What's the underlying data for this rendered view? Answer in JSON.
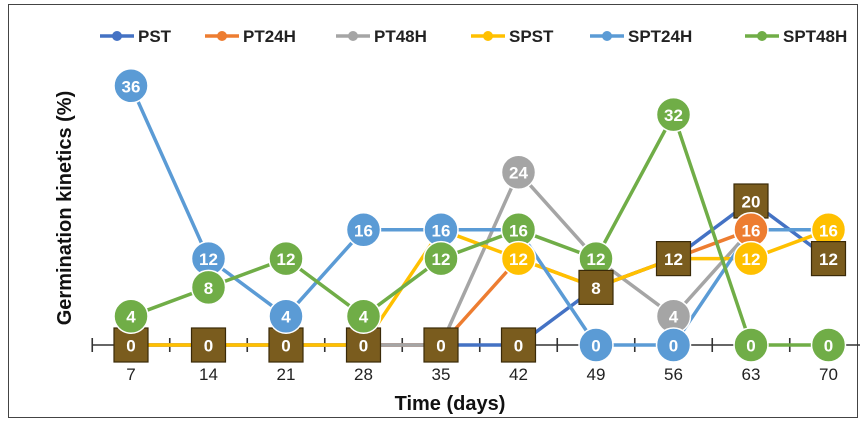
{
  "chart_data": {
    "type": "line",
    "xlabel": "Time (days)",
    "ylabel": "Germination kinetics (%)",
    "x": [
      7,
      14,
      21,
      28,
      35,
      42,
      49,
      56,
      63,
      70
    ],
    "ylim": [
      0,
      40
    ],
    "grid": false,
    "legend_position": "top",
    "series": [
      {
        "name": "PST",
        "color": "#4472c4",
        "values": [
          0,
          0,
          0,
          0,
          0,
          0,
          8,
          12,
          20,
          12
        ],
        "marker": "square",
        "marker_color": "#7a5c1e",
        "label_text_color": "#ffffff"
      },
      {
        "name": "PT24H",
        "color": "#ed7d31",
        "values": [
          0,
          0,
          0,
          0,
          0,
          12,
          8,
          12,
          16,
          16
        ],
        "marker": "circle",
        "marker_color": "#ed7d31",
        "label_text_color": "#ffffff"
      },
      {
        "name": "PT48H",
        "color": "#a5a5a5",
        "values": [
          0,
          0,
          0,
          0,
          0,
          24,
          12,
          4,
          16,
          16
        ],
        "marker": "circle",
        "marker_color": "#a5a5a5",
        "label_text_color": "#ffffff"
      },
      {
        "name": "SPST",
        "color": "#ffc000",
        "values": [
          0,
          0,
          0,
          0,
          16,
          12,
          8,
          12,
          12,
          16
        ],
        "marker": "circle",
        "marker_color": "#ffc000",
        "label_text_color": "#ffffff"
      },
      {
        "name": "SPT24H",
        "color": "#5b9bd5",
        "values": [
          36,
          12,
          4,
          16,
          16,
          16,
          0,
          0,
          16,
          16
        ],
        "marker": "circle",
        "marker_color": "#5b9bd5",
        "label_text_color": "#ffffff"
      },
      {
        "name": "SPT48H",
        "color": "#70ad47",
        "values": [
          4,
          8,
          12,
          4,
          12,
          16,
          12,
          32,
          0,
          0
        ],
        "marker": "circle",
        "marker_color": "#70ad47",
        "label_text_color": "#ffffff"
      }
    ],
    "data_labels": [
      {
        "series": "PST",
        "x": 7,
        "value": 0
      },
      {
        "series": "PST",
        "x": 14,
        "value": 0
      },
      {
        "series": "PST",
        "x": 21,
        "value": 0
      },
      {
        "series": "PST",
        "x": 28,
        "value": 0
      },
      {
        "series": "PST",
        "x": 35,
        "value": 0
      },
      {
        "series": "PST",
        "x": 42,
        "value": 0
      },
      {
        "series": "SPT24H",
        "x": 7,
        "value": 36
      },
      {
        "series": "SPT48H",
        "x": 7,
        "value": 4
      },
      {
        "series": "SPT24H",
        "x": 14,
        "value": 12
      },
      {
        "series": "SPT48H",
        "x": 14,
        "value": 8
      },
      {
        "series": "SPT48H",
        "x": 21,
        "value": 12
      },
      {
        "series": "SPT24H",
        "x": 21,
        "value": 4
      },
      {
        "series": "SPT24H",
        "x": 28,
        "value": 16
      },
      {
        "series": "SPT48H",
        "x": 28,
        "value": 4
      },
      {
        "series": "SPT24H",
        "x": 35,
        "value": 16
      },
      {
        "series": "SPT48H",
        "x": 35,
        "value": 12
      },
      {
        "series": "PT48H",
        "x": 42,
        "value": 24
      },
      {
        "series": "SPT48H",
        "x": 42,
        "value": 16
      },
      {
        "series": "SPST",
        "x": 42,
        "value": 12
      },
      {
        "series": "SPT48H",
        "x": 49,
        "value": 12
      },
      {
        "series": "PST",
        "x": 49,
        "value": 8
      },
      {
        "series": "SPT24H",
        "x": 49,
        "value": 0
      },
      {
        "series": "SPT48H",
        "x": 56,
        "value": 32
      },
      {
        "series": "PST",
        "x": 56,
        "value": 12
      },
      {
        "series": "PT48H",
        "x": 56,
        "value": 4
      },
      {
        "series": "SPT24H",
        "x": 56,
        "value": 0
      },
      {
        "series": "PST",
        "x": 63,
        "value": 20
      },
      {
        "series": "PT24H",
        "x": 63,
        "value": 16
      },
      {
        "series": "SPST",
        "x": 63,
        "value": 12
      },
      {
        "series": "SPT48H",
        "x": 63,
        "value": 0
      },
      {
        "series": "SPST",
        "x": 70,
        "value": 16
      },
      {
        "series": "PST",
        "x": 70,
        "value": 12
      },
      {
        "series": "SPT48H",
        "x": 70,
        "value": 0
      }
    ]
  }
}
